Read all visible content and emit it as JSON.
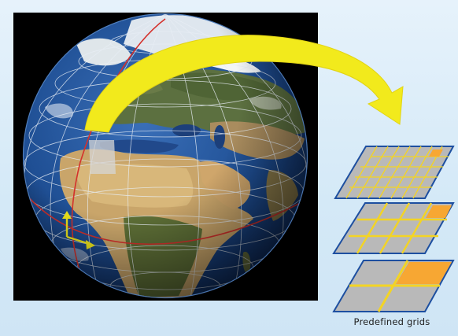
{
  "caption": "Predefined grids",
  "colors": {
    "background": "#dbeef9",
    "arrow": "#f2ea1c",
    "grid_fill": "#b9b9b9",
    "grid_border": "#1d4fa0",
    "grid_lines": "#f3d424",
    "selected_cell": "#f7a733",
    "meridian": "#d4312c",
    "graticule": "#e8eef5"
  },
  "grid_levels": [
    {
      "level": "fine",
      "cols": 8,
      "rows": 5
    },
    {
      "level": "medium",
      "cols": 4,
      "rows": 3
    },
    {
      "level": "coarse",
      "cols": 2,
      "rows": 2
    }
  ]
}
